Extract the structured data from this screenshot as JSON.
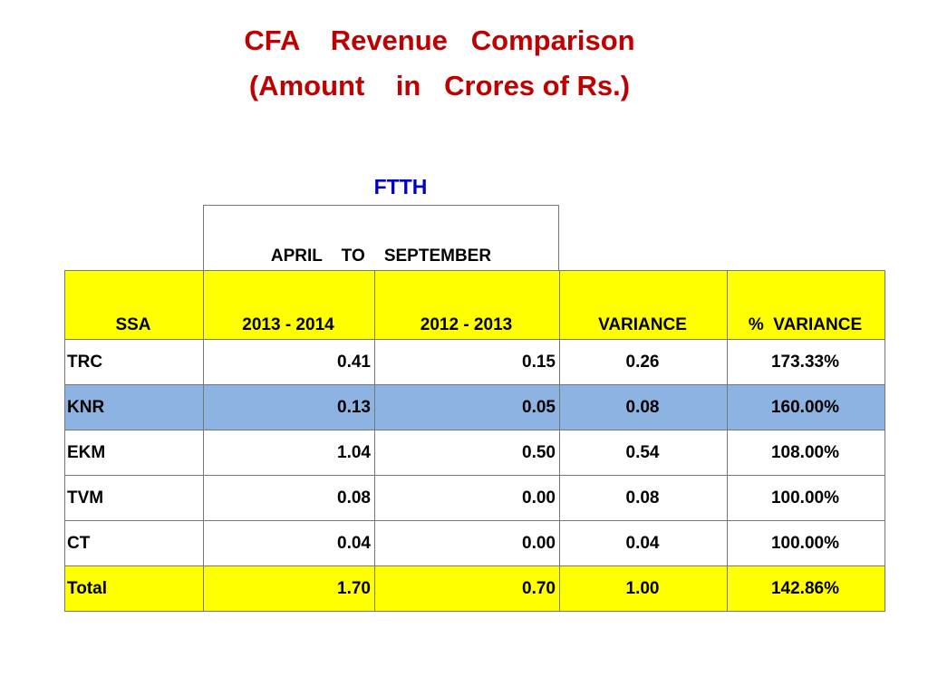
{
  "title": {
    "line1": "CFA    Revenue   Comparison",
    "line2": "(Amount    in   Crores of Rs.)"
  },
  "section_label": "FTTH",
  "period_label": "APRIL    TO    SEPTEMBER",
  "colors": {
    "title": "#c00000",
    "section_label": "#0000c0",
    "highlight_yellow": "#ffff00",
    "highlight_blue": "#8db3e2"
  },
  "table": {
    "headers": [
      "SSA",
      "2013 - 2014",
      "2012 - 2013",
      "VARIANCE",
      "%  VARIANCE"
    ],
    "rows": [
      {
        "ssa": "TRC",
        "y2013_2014": "0.41",
        "y2012_2013": "0.15",
        "variance": "0.26",
        "pct_variance": "173.33%",
        "highlight": "none"
      },
      {
        "ssa": "KNR",
        "y2013_2014": "0.13",
        "y2012_2013": "0.05",
        "variance": "0.08",
        "pct_variance": "160.00%",
        "highlight": "blue"
      },
      {
        "ssa": "EKM",
        "y2013_2014": "1.04",
        "y2012_2013": "0.50",
        "variance": "0.54",
        "pct_variance": "108.00%",
        "highlight": "none"
      },
      {
        "ssa": "TVM",
        "y2013_2014": "0.08",
        "y2012_2013": "0.00",
        "variance": "0.08",
        "pct_variance": "100.00%",
        "highlight": "none"
      },
      {
        "ssa": "CT",
        "y2013_2014": "0.04",
        "y2012_2013": "0.00",
        "variance": "0.04",
        "pct_variance": "100.00%",
        "highlight": "none"
      },
      {
        "ssa": "Total",
        "y2013_2014": "1.70",
        "y2012_2013": "0.70",
        "variance": "1.00",
        "pct_variance": "142.86%",
        "highlight": "yellow"
      }
    ]
  }
}
